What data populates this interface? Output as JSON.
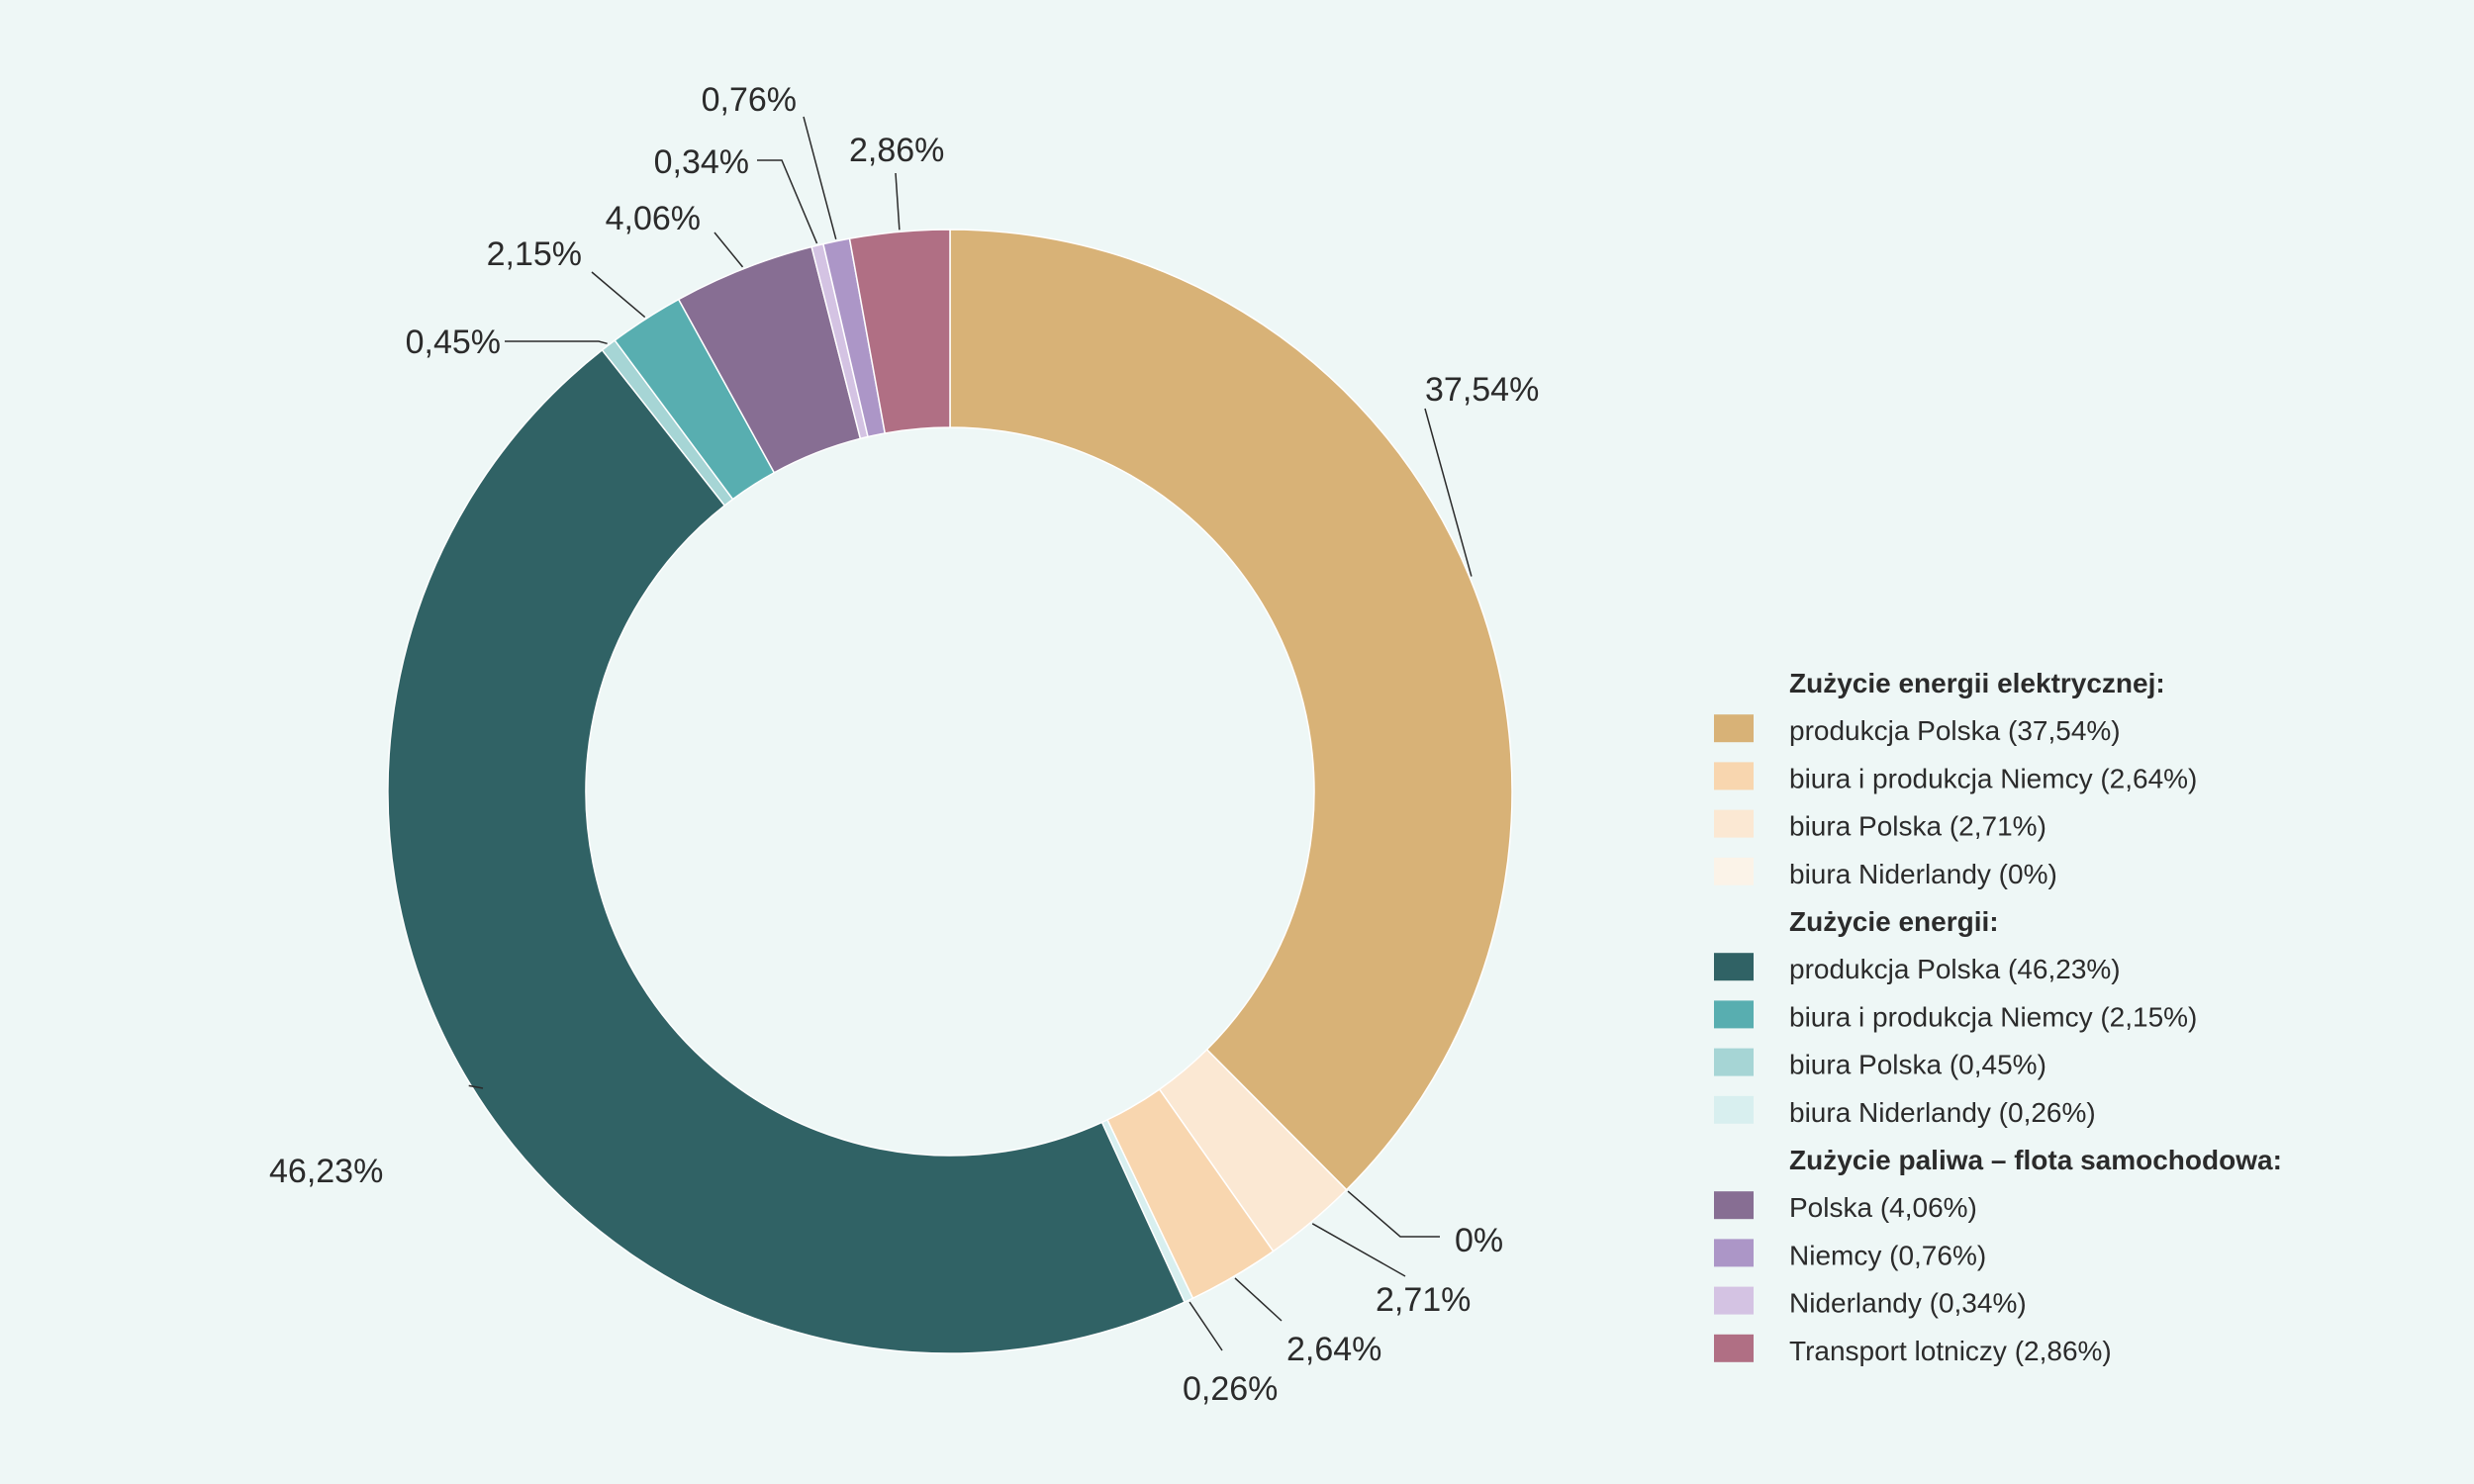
{
  "chart_data": {
    "type": "pie",
    "variant": "donut",
    "start_angle_deg": 0,
    "direction": "clockwise",
    "slices": [
      {
        "label": "produkcja Polska (37,54%)",
        "value": 37.54,
        "display": "37,54%",
        "color": "#d8b277",
        "group": 0
      },
      {
        "label": "biura Niderlandy (0%)",
        "value": 0,
        "display": "0%",
        "color": "#fbf3e8",
        "group": 0
      },
      {
        "label": "biura Polska (2,71%)",
        "value": 2.71,
        "display": "2,71%",
        "color": "#fbe8d3",
        "group": 0
      },
      {
        "label": "biura i produkcja Niemcy (2,64%)",
        "value": 2.64,
        "display": "2,64%",
        "color": "#f8d6af",
        "group": 0
      },
      {
        "label": "biura Niderlandy (0,26%)",
        "value": 0.26,
        "display": "0,26%",
        "color": "#d8efef",
        "group": 1
      },
      {
        "label": "produkcja Polska (46,23%)",
        "value": 46.23,
        "display": "46,23%",
        "color": "#306265",
        "group": 1
      },
      {
        "label": "biura Polska (0,45%)",
        "value": 0.45,
        "display": "0,45%",
        "color": "#a6d5d5",
        "group": 1
      },
      {
        "label": "biura i produkcja Niemcy (2,15%)",
        "value": 2.15,
        "display": "2,15%",
        "color": "#58aeb0",
        "group": 1
      },
      {
        "label": "Polska (4,06%)",
        "value": 4.06,
        "display": "4,06%",
        "color": "#876e93",
        "group": 2
      },
      {
        "label": "Niderlandy (0,34%)",
        "value": 0.34,
        "display": "0,34%",
        "color": "#d4c3e3",
        "group": 2
      },
      {
        "label": "Niemcy (0,76%)",
        "value": 0.76,
        "display": "0,76%",
        "color": "#ac96c7",
        "group": 2
      },
      {
        "label": "Transport lotniczy (2,86%)",
        "value": 2.86,
        "display": "2,86%",
        "color": "#b06f84",
        "group": 2
      }
    ],
    "legend": {
      "placement": "right",
      "groups": [
        {
          "heading": "Zużycie energii elektrycznej:",
          "items": [
            0,
            3,
            2,
            1
          ]
        },
        {
          "heading": "Zużycie energii:",
          "items": [
            5,
            7,
            6,
            4
          ]
        },
        {
          "heading": "Zużycie paliwa – flota samochodowa:",
          "items": [
            8,
            10,
            9,
            11
          ]
        }
      ]
    }
  }
}
